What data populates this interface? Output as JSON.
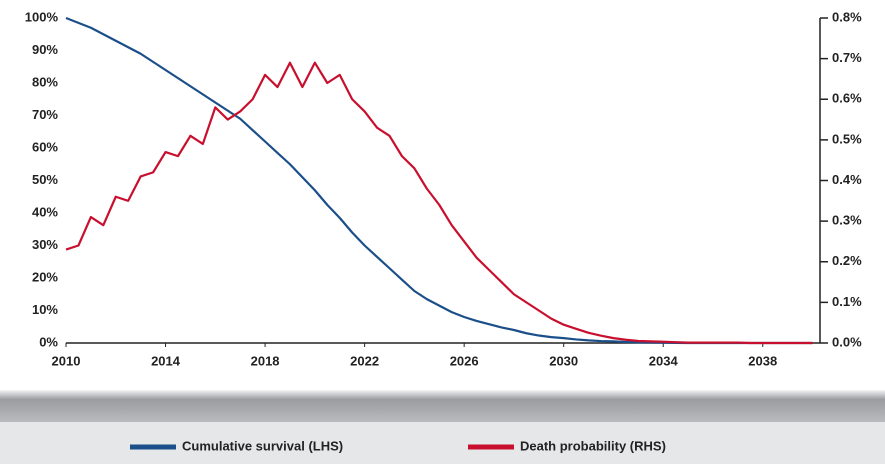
{
  "chart_data": {
    "type": "line",
    "x": [
      2010,
      2010.5,
      2011,
      2011.5,
      2012,
      2012.5,
      2013,
      2013.5,
      2014,
      2014.5,
      2015,
      2015.5,
      2016,
      2016.5,
      2017,
      2017.5,
      2018,
      2018.5,
      2019,
      2019.5,
      2020,
      2020.5,
      2021,
      2021.5,
      2022,
      2022.5,
      2023,
      2023.5,
      2024,
      2024.5,
      2025,
      2025.5,
      2026,
      2026.5,
      2027,
      2027.5,
      2028,
      2028.5,
      2029,
      2029.5,
      2030,
      2030.5,
      2031,
      2031.5,
      2032,
      2032.5,
      2033,
      2033.5,
      2034,
      2034.5,
      2035,
      2035.5,
      2036,
      2036.5,
      2037,
      2037.5,
      2038,
      2038.5,
      2039,
      2039.5,
      2040
    ],
    "series": [
      {
        "name": "Cumulative survival (LHS)",
        "color": "#1b4f8a",
        "axis": "y",
        "values": [
          100,
          98.5,
          97,
          95,
          93,
          91,
          89,
          86.5,
          84,
          81.5,
          79,
          76.5,
          74,
          71.5,
          69,
          65.5,
          62,
          58.5,
          55,
          51,
          47,
          42.5,
          38.5,
          34,
          30,
          26.5,
          23,
          19.5,
          16,
          13.5,
          11.5,
          9.5,
          8,
          6.8,
          5.8,
          4.8,
          4,
          3,
          2.3,
          1.8,
          1.5,
          1.1,
          0.8,
          0.6,
          0.5,
          0.3,
          0.2,
          0.15,
          0.1,
          0.05,
          0,
          0,
          0,
          0,
          0,
          0,
          0,
          0,
          0,
          0,
          0
        ]
      },
      {
        "name": "Death probability (RHS)",
        "color": "#c8102e",
        "axis": "y2",
        "values": [
          0.23,
          0.24,
          0.31,
          0.29,
          0.36,
          0.35,
          0.41,
          0.42,
          0.47,
          0.46,
          0.51,
          0.49,
          0.58,
          0.55,
          0.57,
          0.6,
          0.66,
          0.63,
          0.69,
          0.63,
          0.69,
          0.64,
          0.66,
          0.6,
          0.57,
          0.53,
          0.51,
          0.46,
          0.43,
          0.38,
          0.34,
          0.29,
          0.25,
          0.21,
          0.18,
          0.15,
          0.12,
          0.1,
          0.08,
          0.06,
          0.045,
          0.035,
          0.025,
          0.018,
          0.012,
          0.008,
          0.005,
          0.004,
          0.003,
          0.002,
          0.001,
          0.001,
          0.001,
          0.001,
          0.001,
          0,
          0,
          0,
          0,
          0,
          0
        ]
      }
    ],
    "xlim": [
      2010,
      2040.3
    ],
    "xticks": [
      2010,
      2014,
      2018,
      2022,
      2026,
      2030,
      2034,
      2038
    ],
    "ylim": [
      0,
      100
    ],
    "yticks": [
      {
        "value": 0,
        "label": "0%"
      },
      {
        "value": 10,
        "label": "10%"
      },
      {
        "value": 20,
        "label": "20%"
      },
      {
        "value": 30,
        "label": "30%"
      },
      {
        "value": 40,
        "label": "40%"
      },
      {
        "value": 50,
        "label": "50%"
      },
      {
        "value": 60,
        "label": "60%"
      },
      {
        "value": 70,
        "label": "70%"
      },
      {
        "value": 80,
        "label": "80%"
      },
      {
        "value": 90,
        "label": "90%"
      },
      {
        "value": 100,
        "label": "100%"
      }
    ],
    "y2lim": [
      0,
      0.8
    ],
    "y2ticks": [
      {
        "value": 0,
        "label": "0.0%"
      },
      {
        "value": 0.1,
        "label": "0.1%"
      },
      {
        "value": 0.2,
        "label": "0.2%"
      },
      {
        "value": 0.3,
        "label": "0.3%"
      },
      {
        "value": 0.4,
        "label": "0.4%"
      },
      {
        "value": 0.5,
        "label": "0.5%"
      },
      {
        "value": 0.6,
        "label": "0.6%"
      },
      {
        "value": 0.7,
        "label": "0.7%"
      },
      {
        "value": 0.8,
        "label": "0.8%"
      }
    ],
    "grid": false
  }
}
